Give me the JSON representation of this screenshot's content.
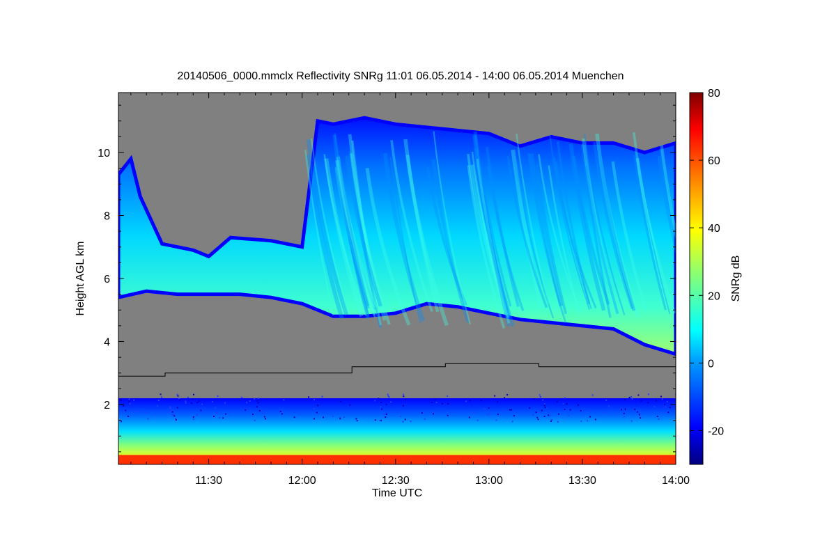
{
  "chart_data": {
    "type": "heatmap",
    "title": "20140506_0000.mmclx Reflectivity SNRg   11:01 06.05.2014 - 14:00 06.05.2014 Muenchen",
    "xlabel": "Time UTC",
    "ylabel": "Height AGL km",
    "xlim": [
      "11:01",
      "14:00"
    ],
    "ylim": [
      0.1,
      11.9
    ],
    "x_ticks": [
      "11:30",
      "12:00",
      "12:30",
      "13:00",
      "13:30",
      "14:00"
    ],
    "y_ticks": [
      "2",
      "4",
      "6",
      "8",
      "10"
    ],
    "colorbar": {
      "label": "SNRg dB",
      "range": [
        -30,
        80
      ],
      "ticks": [
        "-20",
        "0",
        "20",
        "40",
        "60",
        "80"
      ],
      "colormap": "jet",
      "stops": [
        "#00007f",
        "#0000ff",
        "#00a0ff",
        "#00ffff",
        "#7fff7f",
        "#ffff00",
        "#ff8000",
        "#ff0000",
        "#7f0000"
      ]
    },
    "no_signal_color": "#808080",
    "cloud_base_km": [
      {
        "t": "11:01",
        "h": 5.4
      },
      {
        "t": "11:10",
        "h": 5.6
      },
      {
        "t": "11:20",
        "h": 5.5
      },
      {
        "t": "11:30",
        "h": 5.5
      },
      {
        "t": "11:40",
        "h": 5.5
      },
      {
        "t": "11:50",
        "h": 5.4
      },
      {
        "t": "12:00",
        "h": 5.2
      },
      {
        "t": "12:10",
        "h": 4.8
      },
      {
        "t": "12:20",
        "h": 4.8
      },
      {
        "t": "12:30",
        "h": 4.9
      },
      {
        "t": "12:40",
        "h": 5.2
      },
      {
        "t": "12:50",
        "h": 5.1
      },
      {
        "t": "13:00",
        "h": 4.9
      },
      {
        "t": "13:10",
        "h": 4.7
      },
      {
        "t": "13:20",
        "h": 4.6
      },
      {
        "t": "13:30",
        "h": 4.5
      },
      {
        "t": "13:40",
        "h": 4.4
      },
      {
        "t": "13:50",
        "h": 3.9
      },
      {
        "t": "14:00",
        "h": 3.6
      }
    ],
    "cloud_top_km": [
      {
        "t": "11:01",
        "h": 9.3
      },
      {
        "t": "11:05",
        "h": 9.8
      },
      {
        "t": "11:08",
        "h": 8.6
      },
      {
        "t": "11:15",
        "h": 7.1
      },
      {
        "t": "11:25",
        "h": 6.9
      },
      {
        "t": "11:30",
        "h": 6.7
      },
      {
        "t": "11:37",
        "h": 7.3
      },
      {
        "t": "11:50",
        "h": 7.2
      },
      {
        "t": "12:00",
        "h": 7.0
      },
      {
        "t": "12:05",
        "h": 11.0
      },
      {
        "t": "12:10",
        "h": 10.9
      },
      {
        "t": "12:20",
        "h": 11.1
      },
      {
        "t": "12:30",
        "h": 10.9
      },
      {
        "t": "12:40",
        "h": 10.8
      },
      {
        "t": "12:50",
        "h": 10.7
      },
      {
        "t": "13:00",
        "h": 10.6
      },
      {
        "t": "13:10",
        "h": 10.2
      },
      {
        "t": "13:20",
        "h": 10.5
      },
      {
        "t": "13:30",
        "h": 10.3
      },
      {
        "t": "13:40",
        "h": 10.3
      },
      {
        "t": "13:50",
        "h": 10.0
      },
      {
        "t": "14:00",
        "h": 10.3
      }
    ],
    "boundary_layer_top_km": 2.2,
    "surface_layer_top_km": 0.4,
    "step_line_km": [
      {
        "from": "11:01",
        "to": "11:16",
        "h": 2.9
      },
      {
        "from": "11:16",
        "to": "12:16",
        "h": 3.0
      },
      {
        "from": "12:16",
        "to": "12:46",
        "h": 3.2
      },
      {
        "from": "12:46",
        "to": "13:16",
        "h": 3.3
      },
      {
        "from": "13:16",
        "to": "14:00",
        "h": 3.2
      }
    ]
  }
}
